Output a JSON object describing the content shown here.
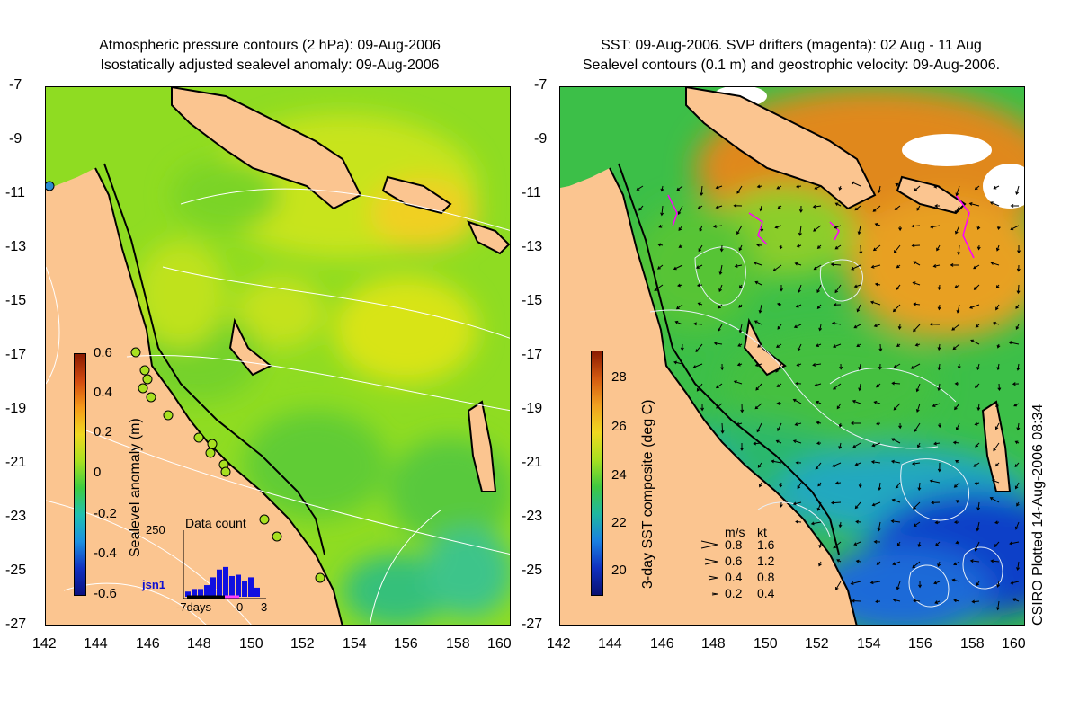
{
  "left_title": {
    "line1": "Atmospheric pressure contours (2 hPa): 09-Aug-2006",
    "line2": "Isostatically adjusted sealevel anomaly: 09-Aug-2006"
  },
  "right_title": {
    "line1": "SST: 09-Aug-2006. SVP drifters (magenta): 02 Aug - 11 Aug",
    "line2": "Sealevel contours (0.1 m) and geostrophic velocity: 09-Aug-2006."
  },
  "axes": {
    "y_ticks": [
      "-7",
      "-9",
      "-11",
      "-13",
      "-15",
      "-17",
      "-19",
      "-21",
      "-23",
      "-25",
      "-27"
    ],
    "x_ticks": [
      "142",
      "144",
      "146",
      "148",
      "150",
      "152",
      "154",
      "156",
      "158",
      "160"
    ]
  },
  "left_colorbar": {
    "label": "Sealevel anomaly (m)",
    "ticks": [
      "0.6",
      "0.4",
      "0.2",
      "0",
      "-0.2",
      "-0.4",
      "-0.6"
    ]
  },
  "histogram": {
    "title": "Data count",
    "max_label": "250",
    "xlabel_left": "-7days",
    "xlabel_mid": "0",
    "xlabel_right": "3",
    "bars": [
      20,
      30,
      30,
      45,
      75,
      105,
      115,
      80,
      85,
      60,
      75,
      35
    ]
  },
  "station_label": "jsn1",
  "right_colorbar": {
    "label": "3-day SST composite (deg C)",
    "ticks": [
      "28",
      "26",
      "24",
      "22",
      "20"
    ]
  },
  "velocity_legend": {
    "header_ms": "m/s",
    "header_kt": "kt",
    "rows": [
      {
        "ms": "0.8",
        "kt": "1.6"
      },
      {
        "ms": "0.6",
        "kt": "1.2"
      },
      {
        "ms": "0.4",
        "kt": "0.8"
      },
      {
        "ms": "0.2",
        "kt": "0.4"
      }
    ]
  },
  "credit": "CSIRO Plotted 14-Aug-2006 08:34",
  "colors": {
    "land": "#fbc590",
    "coast": "#000000",
    "contour": "#ffffff",
    "drifter": "#ff00ff"
  }
}
